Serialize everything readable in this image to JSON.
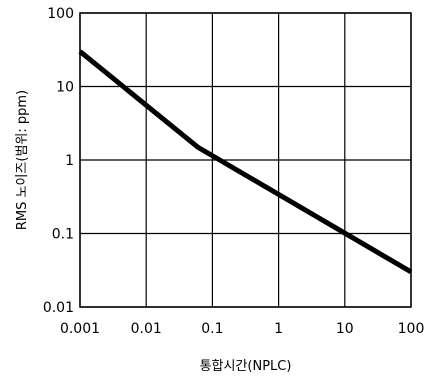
{
  "chart_data": {
    "type": "line",
    "title": "",
    "xlabel": "통합시간(NPLC)",
    "ylabel": "RMS 노이즈(범위: ppm)",
    "x_scale": "log",
    "y_scale": "log",
    "xlim": [
      0.001,
      100
    ],
    "ylim": [
      0.01,
      100
    ],
    "x_tick_labels": [
      "0.001",
      "0.01",
      "0.1",
      "1",
      "10",
      "100"
    ],
    "y_tick_labels": [
      "100",
      "10",
      "1",
      "0.1",
      "0.01"
    ],
    "x_ticks": [
      0.001,
      0.01,
      0.1,
      1,
      10,
      100
    ],
    "y_ticks": [
      100,
      10,
      1,
      0.1,
      0.01
    ],
    "grid": true,
    "line_color": "#000000",
    "series": [
      {
        "x": [
          0.001,
          0.06,
          100
        ],
        "y": [
          30,
          1.5,
          0.03
        ]
      }
    ]
  }
}
